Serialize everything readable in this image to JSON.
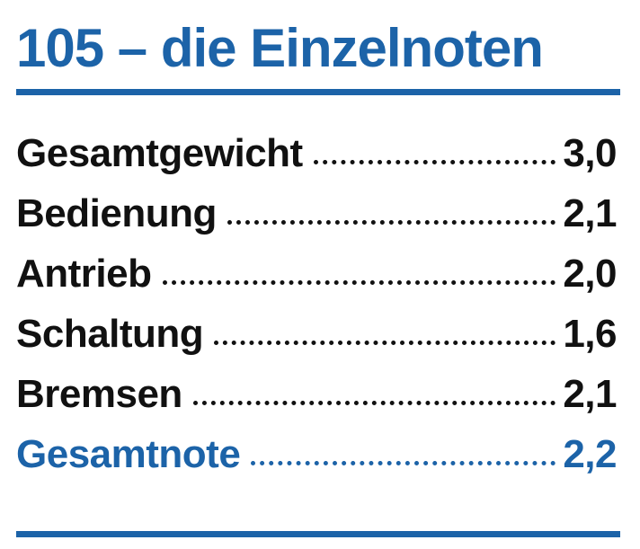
{
  "header": {
    "title": "105 – die Einzelnoten"
  },
  "table": {
    "rows": [
      [
        "Gesamtgewicht",
        "3,0"
      ],
      [
        "Bedienung",
        "2,1"
      ],
      [
        "Antrieb",
        "2,0"
      ],
      [
        "Schaltung",
        "1,6"
      ],
      [
        "Bremsen",
        "2,1"
      ],
      [
        "Gesamtnote",
        "2,2"
      ]
    ]
  }
}
